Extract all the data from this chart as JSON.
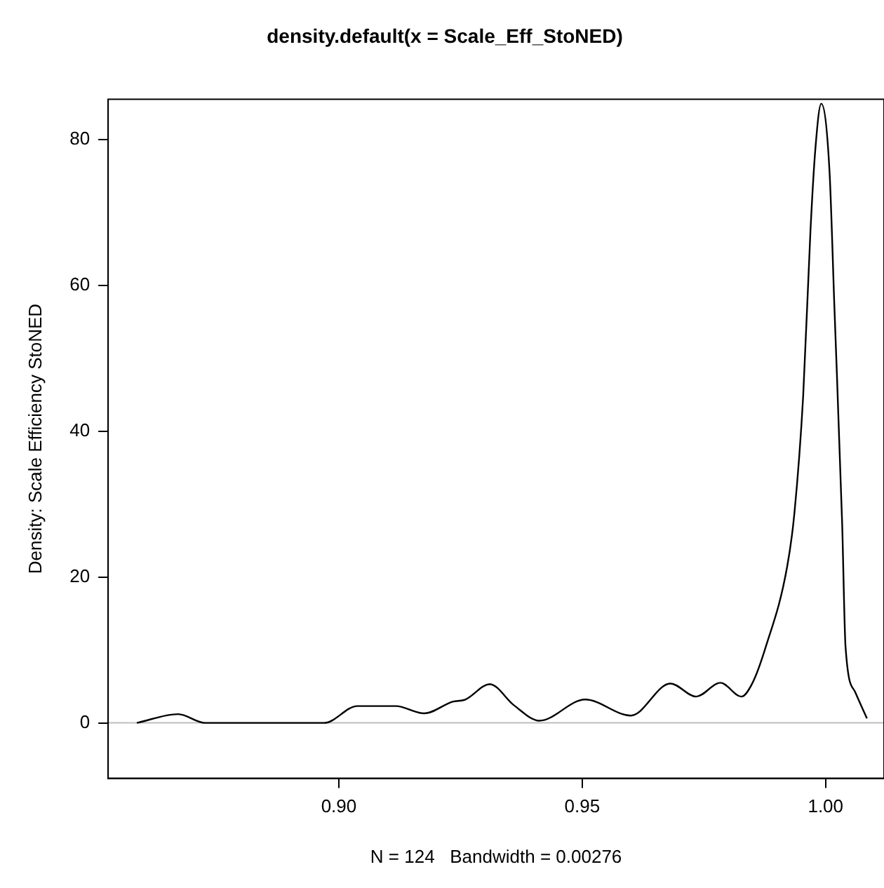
{
  "chart_data": {
    "type": "line",
    "title": "density.default(x = Scale_Eff_StoNED)",
    "xlabel": "N = 124   Bandwidth = 0.00276",
    "ylabel": "Density: Scale Efficiency StoNED",
    "series": [
      {
        "color": "#000000",
        "x": [
          0.8585,
          0.867,
          0.8725,
          0.897,
          0.9038,
          0.9117,
          0.9175,
          0.9234,
          0.926,
          0.931,
          0.936,
          0.9412,
          0.9506,
          0.96,
          0.9681,
          0.9734,
          0.9784,
          0.9827,
          0.985,
          0.9877,
          0.9921,
          0.9936,
          0.9954,
          0.9969,
          0.9979,
          0.9991,
          1.0008,
          1.0018,
          1.0034,
          1.0041,
          1.0061,
          1.0085
        ],
        "values": [
          0,
          1.2,
          0,
          0,
          2.3,
          2.3,
          1.3,
          2.9,
          3.2,
          5.3,
          2.4,
          0.3,
          3.2,
          1.0,
          5.4,
          3.6,
          5.5,
          3.6,
          5.5,
          10.4,
          21.4,
          28.8,
          44.9,
          67.6,
          78.7,
          84.9,
          75.7,
          57.2,
          27.4,
          10.4,
          4.2,
          0.6
        ]
      }
    ],
    "xlim": [
      0.8526,
      1.012
    ],
    "xticks": [
      {
        "value": 0.9,
        "label": "0.90"
      },
      0.95,
      {
        "value": 1.0,
        "label": "1.00"
      }
    ],
    "ylim": [
      -7.6,
      85.5
    ],
    "yticks": [
      0,
      20,
      40,
      60,
      80
    ],
    "ref_lines": [
      {
        "axis": "y",
        "value": 0,
        "color": "#bebebe"
      }
    ],
    "grid": false,
    "legend": false,
    "marker": "none",
    "line_style": "solid"
  }
}
